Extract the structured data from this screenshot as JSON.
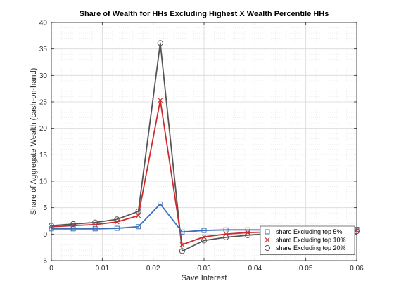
{
  "chart_data": {
    "type": "line",
    "title": "Share of Wealth for HHs Excluding Highest X Wealth Percentile HHs",
    "xlabel": "Save Interest",
    "ylabel": "Share of Aggregate Wealth (cash-on-hand)",
    "xlim": [
      0,
      0.06
    ],
    "ylim": [
      -5,
      40
    ],
    "xticks": [
      0,
      0.01,
      0.02,
      0.03,
      0.04,
      0.05,
      0.06
    ],
    "xtick_labels": [
      "0",
      "0.01",
      "0.02",
      "0.03",
      "0.04",
      "0.05",
      "0.06"
    ],
    "yticks": [
      -5,
      0,
      5,
      10,
      15,
      20,
      25,
      30,
      35,
      40
    ],
    "ytick_labels": [
      "-5",
      "0",
      "5",
      "10",
      "15",
      "20",
      "25",
      "30",
      "35",
      "40"
    ],
    "grid": true,
    "legend_position": "bottom-right",
    "x": [
      0,
      0.0043,
      0.0086,
      0.0129,
      0.0171,
      0.0214,
      0.0257,
      0.03,
      0.0343,
      0.0386,
      0.0429,
      0.0471,
      0.0514,
      0.0557,
      0.06
    ],
    "series": [
      {
        "name": "share Excluding top 5%",
        "color": "#3a6fb5",
        "marker": "square",
        "values": [
          1.0,
          1.0,
          1.0,
          1.1,
          1.4,
          5.7,
          0.4,
          0.7,
          0.8,
          0.8,
          0.8,
          0.85,
          0.85,
          0.85,
          0.9
        ]
      },
      {
        "name": "share Excluding top 10%",
        "color": "#cc2b2b",
        "marker": "x",
        "values": [
          1.4,
          1.6,
          1.8,
          2.3,
          3.5,
          25.3,
          -2.0,
          -0.5,
          0.0,
          0.3,
          0.4,
          0.5,
          0.55,
          0.6,
          0.65
        ]
      },
      {
        "name": "share Excluding top 20%",
        "color": "#555555",
        "marker": "circle",
        "values": [
          1.6,
          1.9,
          2.2,
          2.8,
          4.3,
          36.1,
          -3.2,
          -1.2,
          -0.6,
          -0.2,
          0.1,
          0.3,
          0.4,
          0.5,
          0.55
        ]
      }
    ]
  }
}
